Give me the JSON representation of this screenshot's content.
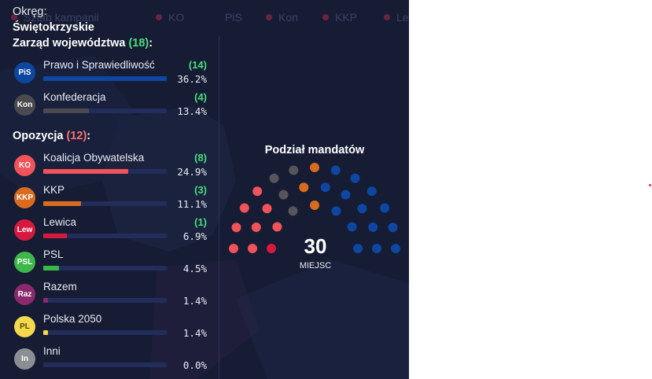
{
  "header": {
    "tabs": [
      {
        "label": "Sztab kampanii",
        "color": "#6b2440"
      },
      {
        "label": "KO",
        "color": "#6b2440"
      },
      {
        "label": "PiS",
        "color": "#6b2440"
      },
      {
        "label": "Kon",
        "color": "#6b2440"
      },
      {
        "label": "KKP",
        "color": "#6b2440"
      },
      {
        "label": "Lew",
        "color": "#6b2440"
      }
    ]
  },
  "district": {
    "label": "Okręg:",
    "name": "Świętokrzyskie"
  },
  "ruling": {
    "title": "Zarząd województwa",
    "count": "(18)",
    "colon": ":",
    "parties": [
      {
        "abbr": "PiS",
        "name": "Prawo i Sprawiedliwość",
        "seats": "(14)",
        "pct": "36.2%",
        "share": 0.362,
        "color": "#0d47a1"
      },
      {
        "abbr": "Kon",
        "name": "Konfederacja",
        "seats": "(4)",
        "pct": "13.4%",
        "share": 0.134,
        "color": "#4b4b4f"
      }
    ]
  },
  "opposition": {
    "title": "Opozycja",
    "count": "(12)",
    "colon": ":",
    "parties": [
      {
        "abbr": "KO",
        "name": "Koalicja Obywatelska",
        "seats": "(8)",
        "pct": "24.9%",
        "share": 0.249,
        "color": "#f05359"
      },
      {
        "abbr": "KKP",
        "name": "KKP",
        "seats": "(3)",
        "pct": "11.1%",
        "share": 0.111,
        "color": "#d96b1f"
      },
      {
        "abbr": "Lew",
        "name": "Lewica",
        "seats": "(1)",
        "pct": "6.9%",
        "share": 0.069,
        "color": "#d8193f"
      },
      {
        "abbr": "PSL",
        "name": "PSL",
        "seats": "",
        "pct": "4.5%",
        "share": 0.045,
        "color": "#3cb84a"
      },
      {
        "abbr": "Raz",
        "name": "Razem",
        "seats": "",
        "pct": "1.4%",
        "share": 0.014,
        "color": "#8a2a6c"
      },
      {
        "abbr": "PL",
        "name": "Polska 2050",
        "seats": "",
        "pct": "1.4%",
        "share": 0.014,
        "color": "#f4d94e"
      },
      {
        "abbr": "In",
        "name": "Inni",
        "seats": "",
        "pct": "0.0%",
        "share": 0.0,
        "color": "#8b8f94"
      }
    ]
  },
  "seat_chart": {
    "title": "Podział mandatów",
    "total": "30",
    "total_label": "MIEJSC",
    "groups": [
      {
        "party": "Lew",
        "seats": 1,
        "color": "#d8193f"
      },
      {
        "party": "KO",
        "seats": 8,
        "color": "#f05359"
      },
      {
        "party": "Kon",
        "seats": 4,
        "color": "#55555a"
      },
      {
        "party": "KKP",
        "seats": 3,
        "color": "#d96b1f"
      },
      {
        "party": "PiS",
        "seats": 14,
        "color": "#0d47a1"
      }
    ]
  }
}
